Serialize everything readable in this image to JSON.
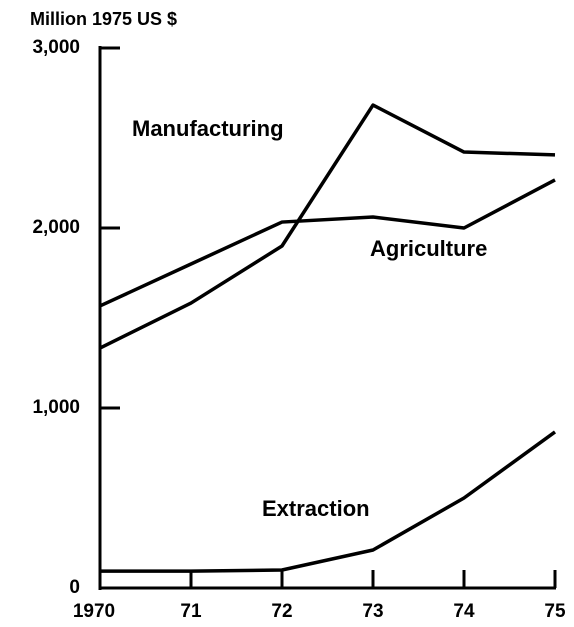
{
  "chart_data": {
    "type": "line",
    "y_axis_label": "Million 1975 US $",
    "categories": [
      "1970",
      "71",
      "72",
      "73",
      "74",
      "75"
    ],
    "series": [
      {
        "name": "Manufacturing",
        "color": "#000000",
        "values": [
          1333,
          1583,
          1900,
          2683,
          2422,
          2406
        ]
      },
      {
        "name": "Agriculture",
        "color": "#000000",
        "values": [
          1567,
          1800,
          2033,
          2061,
          2000,
          2267
        ]
      },
      {
        "name": "Extraction",
        "color": "#000000",
        "values": [
          94,
          94,
          100,
          211,
          500,
          867
        ]
      }
    ],
    "ylim": [
      0,
      3000
    ],
    "yticks": [
      0,
      {
        "value": 1000,
        "label": "1,000"
      },
      {
        "value": 2000,
        "label": "2,000"
      },
      {
        "value": 3000,
        "label": "3,000"
      }
    ]
  }
}
